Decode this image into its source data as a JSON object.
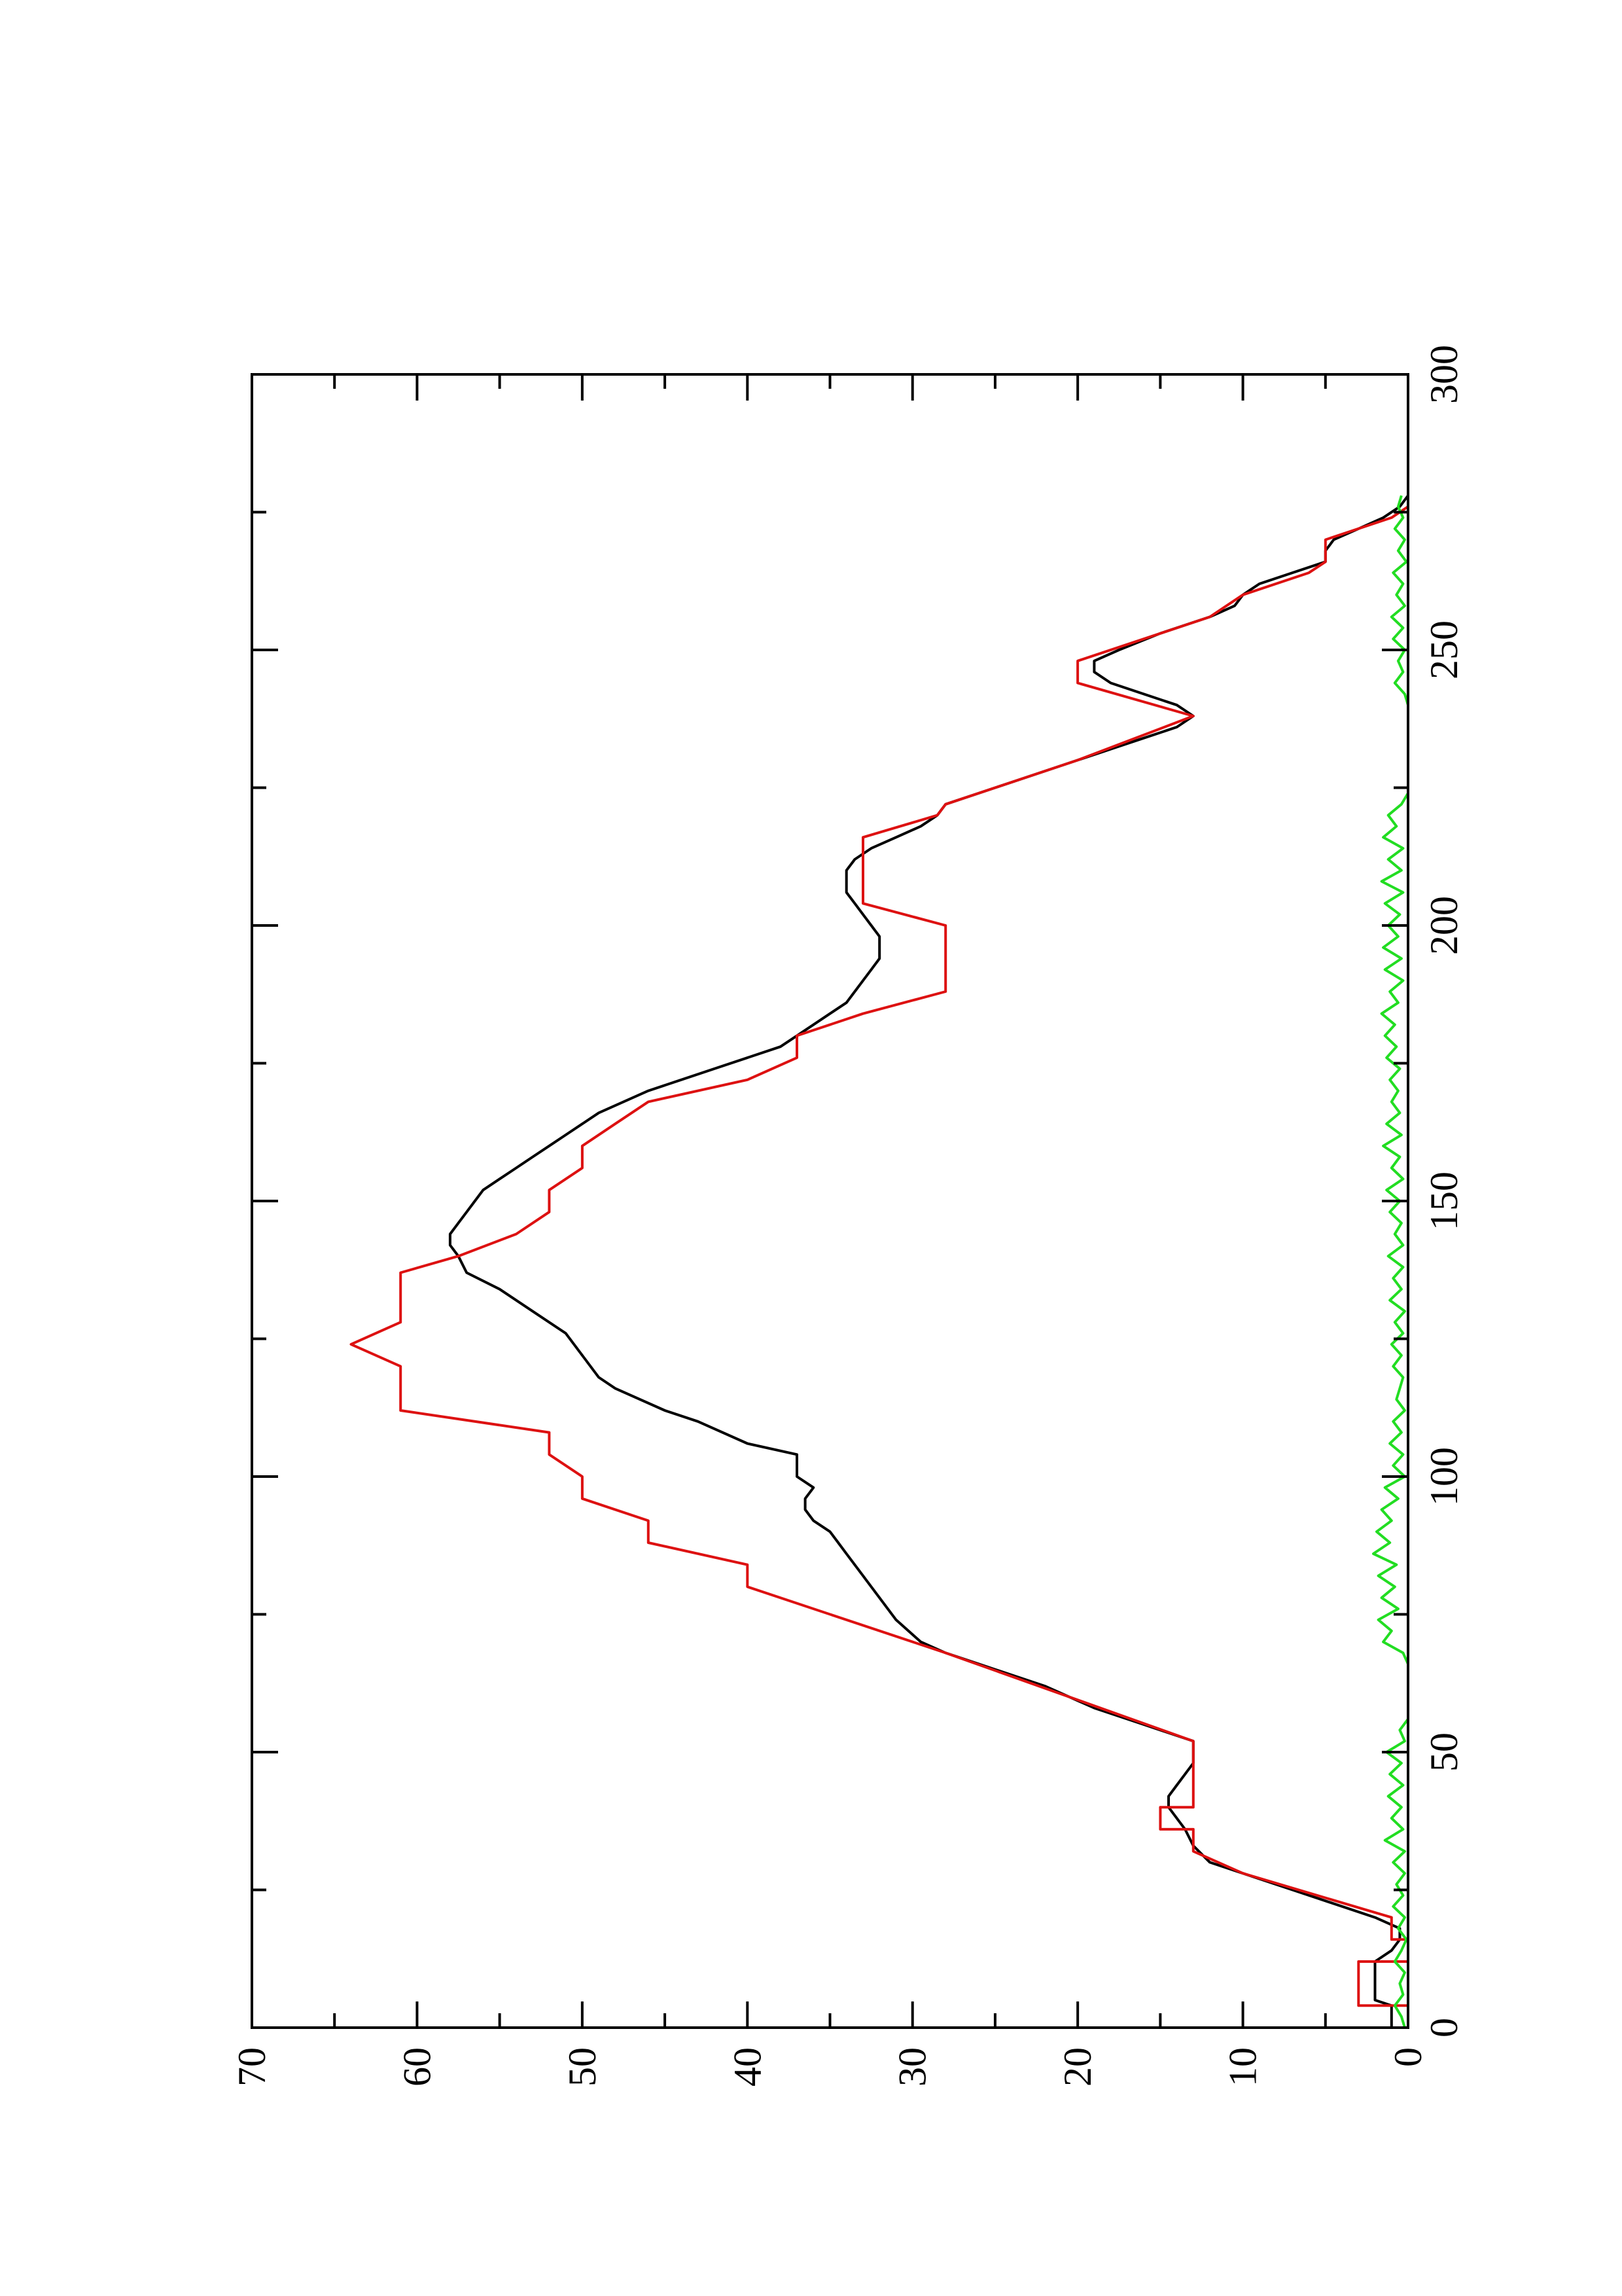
{
  "chart_data": {
    "type": "line",
    "orientation": "rotated-90-counterclockwise",
    "title": "",
    "xlabel": "",
    "ylabel": "",
    "xlim": [
      0,
      300
    ],
    "ylim": [
      0,
      70
    ],
    "x_ticks": [
      "0",
      "50",
      "100",
      "150",
      "200",
      "250",
      "300"
    ],
    "y_ticks": [
      "0",
      "10",
      "20",
      "30",
      "40",
      "50",
      "60",
      "70"
    ],
    "grid": false,
    "legend": "none",
    "series": [
      {
        "color": "#000000",
        "points": [
          [
            0,
            1
          ],
          [
            2,
            1
          ],
          [
            4,
            1
          ],
          [
            5,
            2
          ],
          [
            8,
            2
          ],
          [
            10,
            2
          ],
          [
            12,
            2
          ],
          [
            14,
            1
          ],
          [
            16,
            0.5
          ],
          [
            18,
            0.5
          ],
          [
            20,
            2
          ],
          [
            24,
            6
          ],
          [
            28,
            10
          ],
          [
            30,
            12
          ],
          [
            33,
            13
          ],
          [
            36,
            13.5
          ],
          [
            40,
            14.5
          ],
          [
            42,
            14.5
          ],
          [
            44,
            14
          ],
          [
            46,
            13.5
          ],
          [
            48,
            13
          ],
          [
            52,
            13
          ],
          [
            55,
            16
          ],
          [
            58,
            19
          ],
          [
            62,
            22
          ],
          [
            66,
            26
          ],
          [
            68,
            28
          ],
          [
            70,
            29.5
          ],
          [
            74,
            31
          ],
          [
            78,
            32
          ],
          [
            82,
            33
          ],
          [
            86,
            34
          ],
          [
            88,
            34.5
          ],
          [
            90,
            35
          ],
          [
            92,
            36
          ],
          [
            94,
            36.5
          ],
          [
            96,
            36.5
          ],
          [
            98,
            36
          ],
          [
            100,
            37
          ],
          [
            102,
            37
          ],
          [
            104,
            37
          ],
          [
            106,
            40
          ],
          [
            110,
            43
          ],
          [
            112,
            45
          ],
          [
            116,
            48
          ],
          [
            118,
            49
          ],
          [
            122,
            50
          ],
          [
            126,
            51
          ],
          [
            130,
            53
          ],
          [
            134,
            55
          ],
          [
            137,
            57
          ],
          [
            140,
            57.5
          ],
          [
            142,
            58
          ],
          [
            144,
            58
          ],
          [
            146,
            57.5
          ],
          [
            148,
            57
          ],
          [
            150,
            56.5
          ],
          [
            152,
            56
          ],
          [
            154,
            55
          ],
          [
            156,
            54
          ],
          [
            158,
            53
          ],
          [
            160,
            52
          ],
          [
            162,
            51
          ],
          [
            166,
            49
          ],
          [
            170,
            46
          ],
          [
            174,
            42
          ],
          [
            178,
            38
          ],
          [
            180,
            37
          ],
          [
            182,
            36
          ],
          [
            184,
            35
          ],
          [
            186,
            34
          ],
          [
            188,
            33.5
          ],
          [
            190,
            33
          ],
          [
            192,
            32.5
          ],
          [
            194,
            32
          ],
          [
            196,
            32
          ],
          [
            198,
            32
          ],
          [
            200,
            32.5
          ],
          [
            202,
            33
          ],
          [
            204,
            33.5
          ],
          [
            206,
            34
          ],
          [
            208,
            34
          ],
          [
            210,
            34
          ],
          [
            212,
            33.5
          ],
          [
            214,
            32.5
          ],
          [
            216,
            31
          ],
          [
            218,
            29.5
          ],
          [
            220,
            28.5
          ],
          [
            222,
            28
          ],
          [
            226,
            24
          ],
          [
            230,
            20
          ],
          [
            234,
            16
          ],
          [
            236,
            14
          ],
          [
            238,
            13
          ],
          [
            240,
            14
          ],
          [
            242,
            16
          ],
          [
            244,
            18
          ],
          [
            246,
            19
          ],
          [
            248,
            19
          ],
          [
            250,
            17.5
          ],
          [
            253,
            15
          ],
          [
            256,
            12
          ],
          [
            258,
            10.5
          ],
          [
            260,
            10
          ],
          [
            262,
            9
          ],
          [
            264,
            7
          ],
          [
            266,
            5
          ],
          [
            268,
            5
          ],
          [
            270,
            4.5
          ],
          [
            272,
            3
          ],
          [
            274,
            1.5
          ],
          [
            276,
            0.5
          ],
          [
            278,
            0
          ]
        ]
      },
      {
        "color": "#dd1111",
        "points": [
          [
            0,
            0
          ],
          [
            4,
            0
          ],
          [
            4,
            3
          ],
          [
            8,
            3
          ],
          [
            12,
            3
          ],
          [
            12,
            0
          ],
          [
            16,
            0
          ],
          [
            16,
            1
          ],
          [
            20,
            1
          ],
          [
            28,
            10
          ],
          [
            32,
            13
          ],
          [
            36,
            13
          ],
          [
            36,
            15
          ],
          [
            40,
            15
          ],
          [
            40,
            13
          ],
          [
            44,
            13
          ],
          [
            44,
            13
          ],
          [
            52,
            13
          ],
          [
            68,
            28
          ],
          [
            80,
            40
          ],
          [
            84,
            40
          ],
          [
            88,
            46
          ],
          [
            92,
            46
          ],
          [
            96,
            50
          ],
          [
            100,
            50
          ],
          [
            104,
            52
          ],
          [
            108,
            52
          ],
          [
            112,
            61
          ],
          [
            116,
            61
          ],
          [
            120,
            61
          ],
          [
            124,
            64
          ],
          [
            128,
            61
          ],
          [
            132,
            61
          ],
          [
            137,
            61
          ],
          [
            140,
            57.5
          ],
          [
            144,
            54
          ],
          [
            148,
            52
          ],
          [
            152,
            52
          ],
          [
            156,
            50
          ],
          [
            160,
            50
          ],
          [
            164,
            48
          ],
          [
            168,
            46
          ],
          [
            172,
            40
          ],
          [
            176,
            37
          ],
          [
            180,
            37
          ],
          [
            184,
            33
          ],
          [
            188,
            28
          ],
          [
            192,
            28
          ],
          [
            196,
            28
          ],
          [
            200,
            28
          ],
          [
            204,
            33
          ],
          [
            208,
            33
          ],
          [
            212,
            33
          ],
          [
            216,
            33
          ],
          [
            220,
            28.5
          ],
          [
            222,
            28
          ],
          [
            230,
            20
          ],
          [
            238,
            13
          ],
          [
            244,
            20
          ],
          [
            248,
            20
          ],
          [
            252,
            16
          ],
          [
            256,
            12
          ],
          [
            260,
            10
          ],
          [
            264,
            6
          ],
          [
            266,
            5
          ],
          [
            270,
            5
          ],
          [
            274,
            1
          ],
          [
            276,
            0
          ],
          [
            278,
            0
          ]
        ]
      },
      {
        "color": "#22dd22",
        "points": [
          [
            0,
            0.2
          ],
          [
            2,
            0.4
          ],
          [
            4,
            0.8
          ],
          [
            6,
            0.3
          ],
          [
            8,
            0.5
          ],
          [
            10,
            0.2
          ],
          [
            12,
            0.8
          ],
          [
            14,
            0.4
          ],
          [
            16,
            0.1
          ],
          [
            18,
            0.6
          ],
          [
            20,
            0.2
          ],
          [
            22,
            0.9
          ],
          [
            24,
            0.3
          ],
          [
            26,
            0.7
          ],
          [
            28,
            0.2
          ],
          [
            30,
            0.9
          ],
          [
            32,
            0.2
          ],
          [
            34,
            1.4
          ],
          [
            36,
            0.3
          ],
          [
            38,
            1.0
          ],
          [
            40,
            0.4
          ],
          [
            42,
            1.2
          ],
          [
            44,
            0.3
          ],
          [
            46,
            1.1
          ],
          [
            48,
            0.4
          ],
          [
            50,
            1.3
          ],
          [
            52,
            0.2
          ],
          [
            54,
            0.5
          ],
          [
            56,
            0.0
          ],
          [
            58,
            0.0
          ],
          [
            60,
            0.0
          ],
          [
            62,
            0.0
          ],
          [
            64,
            0.0
          ],
          [
            66,
            0.0
          ],
          [
            68,
            0.3
          ],
          [
            70,
            1.5
          ],
          [
            72,
            1.0
          ],
          [
            74,
            1.8
          ],
          [
            76,
            0.6
          ],
          [
            78,
            1.6
          ],
          [
            80,
            0.8
          ],
          [
            82,
            1.8
          ],
          [
            84,
            0.7
          ],
          [
            86,
            2.1
          ],
          [
            88,
            1.1
          ],
          [
            90,
            1.9
          ],
          [
            92,
            1.0
          ],
          [
            94,
            1.6
          ],
          [
            96,
            0.6
          ],
          [
            98,
            1.4
          ],
          [
            100,
            0.2
          ],
          [
            102,
            0.9
          ],
          [
            104,
            0.3
          ],
          [
            106,
            1.1
          ],
          [
            108,
            0.4
          ],
          [
            110,
            0.9
          ],
          [
            112,
            0.2
          ],
          [
            114,
            0.7
          ],
          [
            116,
            0.5
          ],
          [
            118,
            0.3
          ],
          [
            120,
            0.9
          ],
          [
            122,
            0.4
          ],
          [
            124,
            1.0
          ],
          [
            126,
            0.3
          ],
          [
            128,
            0.8
          ],
          [
            130,
            0.2
          ],
          [
            132,
            1.1
          ],
          [
            134,
            0.4
          ],
          [
            136,
            0.9
          ],
          [
            138,
            0.3
          ],
          [
            140,
            1.2
          ],
          [
            142,
            0.3
          ],
          [
            144,
            0.8
          ],
          [
            146,
            0.4
          ],
          [
            148,
            1.1
          ],
          [
            150,
            0.5
          ],
          [
            152,
            1.3
          ],
          [
            154,
            0.3
          ],
          [
            156,
            1.0
          ],
          [
            158,
            0.5
          ],
          [
            160,
            1.5
          ],
          [
            162,
            0.4
          ],
          [
            164,
            1.3
          ],
          [
            166,
            0.5
          ],
          [
            168,
            1.0
          ],
          [
            170,
            0.6
          ],
          [
            172,
            1.1
          ],
          [
            174,
            0.5
          ],
          [
            176,
            1.3
          ],
          [
            178,
            0.7
          ],
          [
            180,
            1.4
          ],
          [
            182,
            0.8
          ],
          [
            184,
            1.6
          ],
          [
            186,
            0.6
          ],
          [
            188,
            1.1
          ],
          [
            190,
            0.3
          ],
          [
            192,
            1.4
          ],
          [
            194,
            0.4
          ],
          [
            196,
            1.5
          ],
          [
            198,
            0.6
          ],
          [
            200,
            1.2
          ],
          [
            202,
            0.5
          ],
          [
            204,
            1.4
          ],
          [
            206,
            0.3
          ],
          [
            208,
            1.6
          ],
          [
            210,
            0.4
          ],
          [
            212,
            1.2
          ],
          [
            214,
            0.3
          ],
          [
            216,
            1.5
          ],
          [
            218,
            0.7
          ],
          [
            220,
            1.2
          ],
          [
            222,
            0.4
          ],
          [
            224,
            0.0
          ],
          [
            228,
            0.0
          ],
          [
            232,
            0.0
          ],
          [
            236,
            0.0
          ],
          [
            240,
            0.0
          ],
          [
            242,
            0.2
          ],
          [
            244,
            0.8
          ],
          [
            246,
            0.3
          ],
          [
            248,
            0.6
          ],
          [
            250,
            0.2
          ],
          [
            252,
            0.9
          ],
          [
            254,
            0.3
          ],
          [
            256,
            1.0
          ],
          [
            258,
            0.2
          ],
          [
            260,
            0.7
          ],
          [
            262,
            0.3
          ],
          [
            264,
            0.9
          ],
          [
            266,
            0.1
          ],
          [
            268,
            0.6
          ],
          [
            270,
            0.2
          ],
          [
            272,
            0.8
          ],
          [
            274,
            0.3
          ],
          [
            276,
            0.6
          ],
          [
            278,
            0.4
          ]
        ]
      }
    ]
  }
}
